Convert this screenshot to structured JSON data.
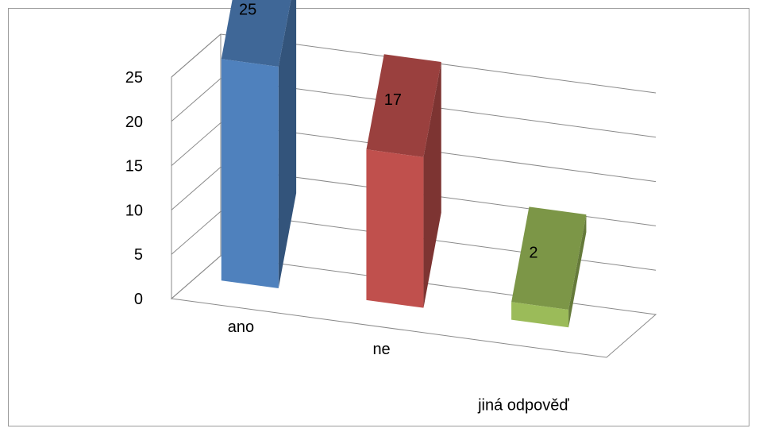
{
  "chart_data": {
    "type": "bar",
    "style": "3d-column",
    "categories": [
      "ano",
      "ne",
      "jiná odpověď"
    ],
    "values": [
      25,
      17,
      2
    ],
    "colors": [
      "#4f81bd",
      "#c0504d",
      "#9bbb59"
    ],
    "yticks": [
      "0",
      "5",
      "10",
      "15",
      "20",
      "25"
    ],
    "ylim": [
      0,
      25
    ],
    "grid": true,
    "legend": "none"
  }
}
